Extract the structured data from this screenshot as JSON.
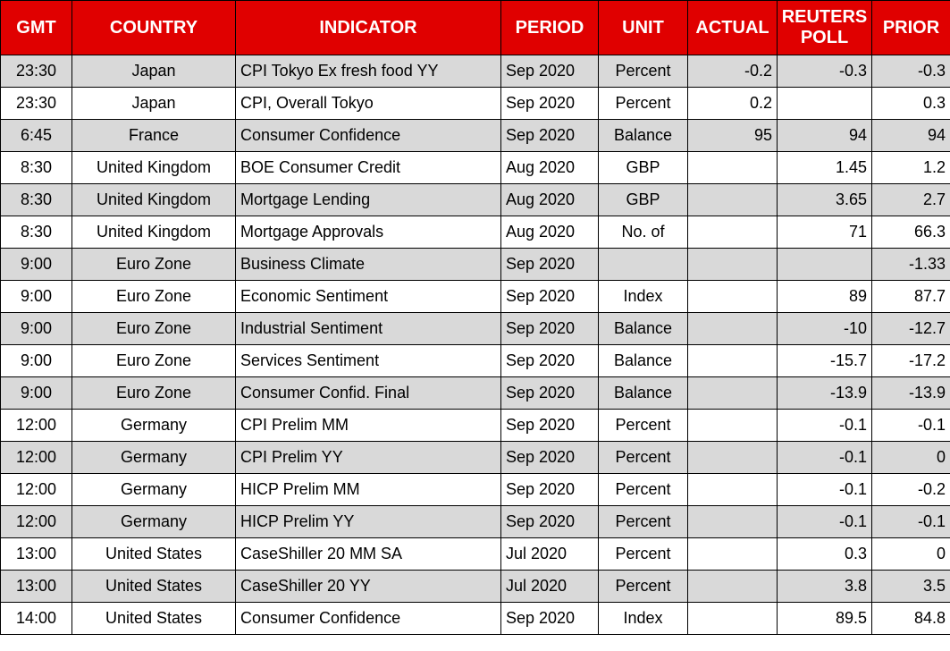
{
  "chart_data": {
    "type": "table",
    "columns": [
      "GMT",
      "COUNTRY",
      "INDICATOR",
      "PERIOD",
      "UNIT",
      "ACTUAL",
      "REUTERS POLL",
      "PRIOR"
    ],
    "rows": [
      [
        "23:30",
        "Japan",
        "CPI Tokyo Ex fresh food YY",
        "Sep 2020",
        "Percent",
        "-0.2",
        "-0.3",
        "-0.3"
      ],
      [
        "23:30",
        "Japan",
        "CPI, Overall Tokyo",
        "Sep 2020",
        "Percent",
        "0.2",
        "",
        "0.3"
      ],
      [
        "6:45",
        "France",
        "Consumer Confidence",
        "Sep 2020",
        "Balance",
        "95",
        "94",
        "94"
      ],
      [
        "8:30",
        "United Kingdom",
        "BOE Consumer Credit",
        "Aug 2020",
        "GBP",
        "",
        "1.45",
        "1.2"
      ],
      [
        "8:30",
        "United Kingdom",
        "Mortgage Lending",
        "Aug 2020",
        "GBP",
        "",
        "3.65",
        "2.7"
      ],
      [
        "8:30",
        "United Kingdom",
        "Mortgage Approvals",
        "Aug 2020",
        "No. of",
        "",
        "71",
        "66.3"
      ],
      [
        "9:00",
        "Euro Zone",
        "Business Climate",
        "Sep 2020",
        "",
        "",
        "",
        "-1.33"
      ],
      [
        "9:00",
        "Euro Zone",
        "Economic Sentiment",
        "Sep 2020",
        "Index",
        "",
        "89",
        "87.7"
      ],
      [
        "9:00",
        "Euro Zone",
        "Industrial Sentiment",
        "Sep 2020",
        "Balance",
        "",
        "-10",
        "-12.7"
      ],
      [
        "9:00",
        "Euro Zone",
        "Services Sentiment",
        "Sep 2020",
        "Balance",
        "",
        "-15.7",
        "-17.2"
      ],
      [
        "9:00",
        "Euro Zone",
        "Consumer Confid. Final",
        "Sep 2020",
        "Balance",
        "",
        "-13.9",
        "-13.9"
      ],
      [
        "12:00",
        "Germany",
        "CPI Prelim MM",
        "Sep 2020",
        "Percent",
        "",
        "-0.1",
        "-0.1"
      ],
      [
        "12:00",
        "Germany",
        "CPI Prelim YY",
        "Sep 2020",
        "Percent",
        "",
        "-0.1",
        "0"
      ],
      [
        "12:00",
        "Germany",
        "HICP Prelim MM",
        "Sep 2020",
        "Percent",
        "",
        "-0.1",
        "-0.2"
      ],
      [
        "12:00",
        "Germany",
        "HICP Prelim YY",
        "Sep 2020",
        "Percent",
        "",
        "-0.1",
        "-0.1"
      ],
      [
        "13:00",
        "United States",
        "CaseShiller 20 MM SA",
        "Jul 2020",
        "Percent",
        "",
        "0.3",
        "0"
      ],
      [
        "13:00",
        "United States",
        "CaseShiller 20 YY",
        "Jul 2020",
        "Percent",
        "",
        "3.8",
        "3.5"
      ],
      [
        "14:00",
        "United States",
        "Consumer Confidence",
        "Sep 2020",
        "Index",
        "",
        "89.5",
        "84.8"
      ]
    ]
  },
  "colors": {
    "header_bg": "#E00000",
    "header_text": "#FFFFFF",
    "row_odd_bg": "#D9D9D9",
    "row_even_bg": "#FFFFFF",
    "border": "#000000",
    "text": "#000000"
  }
}
